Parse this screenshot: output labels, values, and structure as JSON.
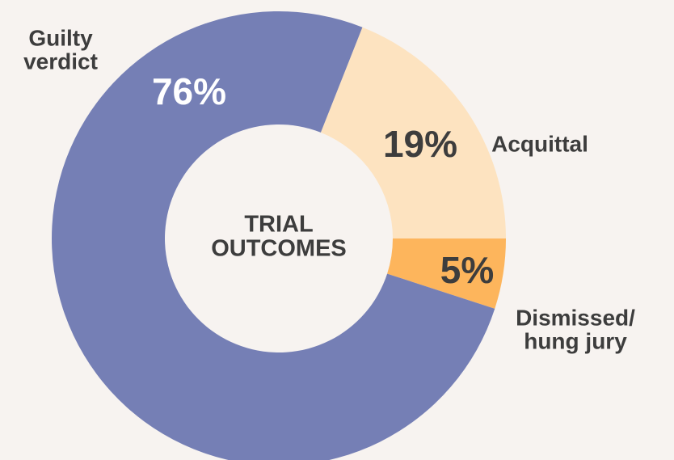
{
  "chart_data": {
    "type": "donut",
    "title": "TRIAL OUTCOMES",
    "categories": [
      "Acquittal",
      "Dismissed/ hung jury",
      "Guilty verdict"
    ],
    "values": [
      19,
      5,
      76
    ],
    "value_labels": [
      "19%",
      "5%",
      "76%"
    ],
    "colors": [
      "#fde3c0",
      "#fdb55c",
      "#757fb5"
    ]
  }
}
